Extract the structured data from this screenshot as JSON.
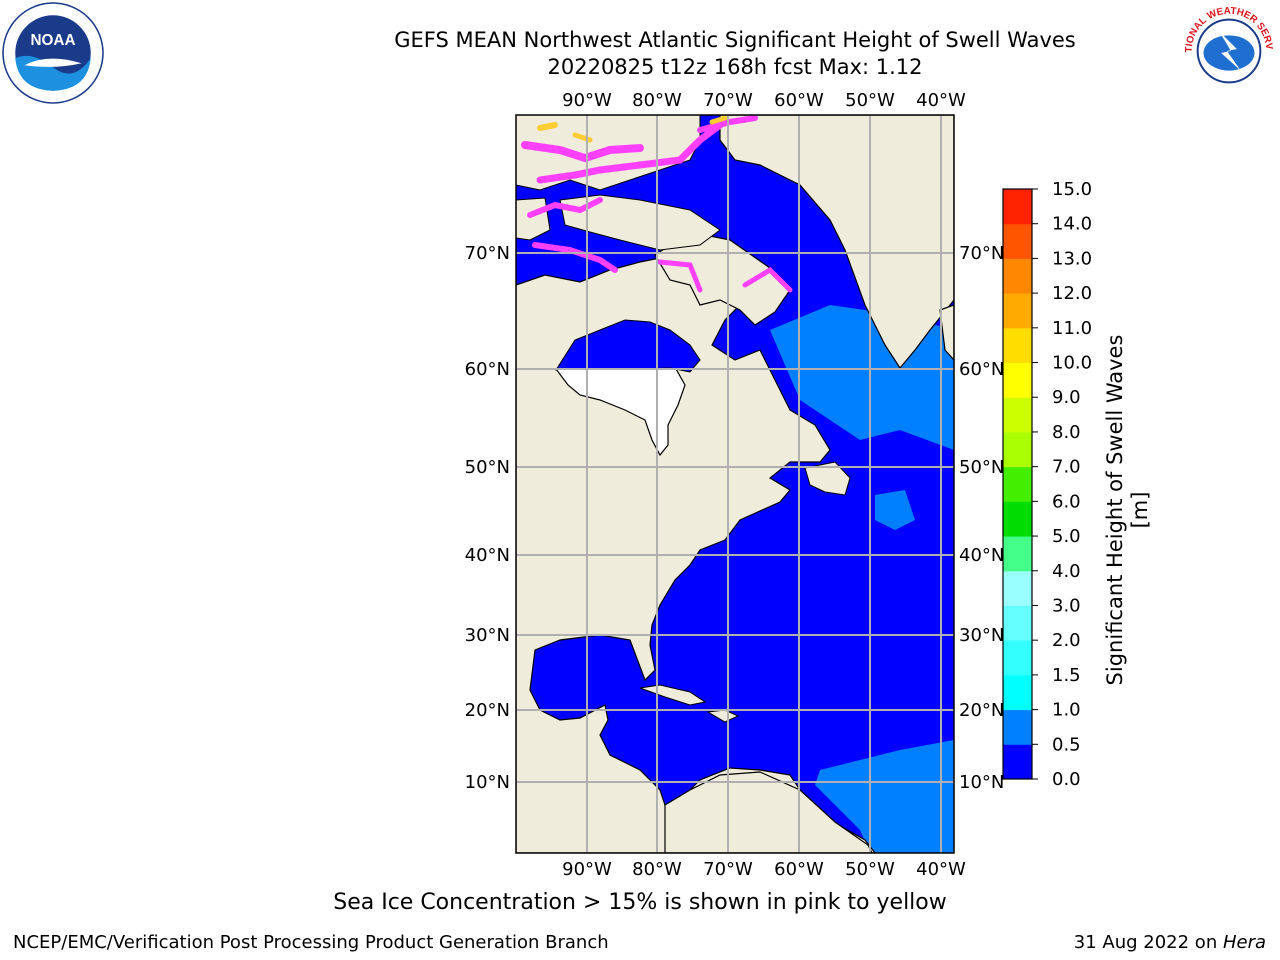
{
  "header": {
    "title_line1": "GEFS MEAN Northwest Atlantic Significant Height of Swell Waves",
    "title_line2": "20220825 t12z 168h fcst   Max: 1.12"
  },
  "logos": {
    "left": {
      "name": "NOAA",
      "icon": "noaa-logo"
    },
    "right": {
      "name": "National Weather Service",
      "icon": "nws-logo"
    }
  },
  "map": {
    "lon_labels": [
      "90°W",
      "80°W",
      "70°W",
      "60°W",
      "50°W",
      "40°W"
    ],
    "lat_labels": [
      "70°N",
      "60°N",
      "50°N",
      "40°N",
      "30°N",
      "20°N",
      "10°N"
    ],
    "colors": {
      "land": "#efecdc",
      "ocean_low": "#0000ff",
      "ocean_mid": "#007fff",
      "ocean_high": "#00ffff",
      "masked": "#ffffff",
      "ice_pink": "#ff40ff",
      "ice_yellow": "#ffcc33",
      "grid": "#b0b0b0"
    }
  },
  "colorbar": {
    "label": "Significant Height of Swell Waves [m]",
    "ticks": [
      "0.0",
      "0.5",
      "1.0",
      "1.5",
      "2.0",
      "3.0",
      "4.0",
      "5.0",
      "6.0",
      "7.0",
      "8.0",
      "9.0",
      "10.0",
      "11.0",
      "12.0",
      "13.0",
      "14.0",
      "15.0"
    ],
    "colors": [
      "#0000ff",
      "#007fff",
      "#00ffff",
      "#33ffff",
      "#66ffff",
      "#99ffff",
      "#44ff88",
      "#00dd00",
      "#44ee00",
      "#aaff00",
      "#ccff00",
      "#ffff00",
      "#ffdd00",
      "#ffaa00",
      "#ff8800",
      "#ff5500",
      "#ff2200",
      "#ff0000"
    ]
  },
  "note": "Sea Ice Concentration > 15% is shown in pink to yellow",
  "footer": {
    "left": "NCEP/EMC/Verification Post Processing Product Generation Branch",
    "right_prefix": "31 Aug 2022 on ",
    "right_host": "Hera"
  }
}
